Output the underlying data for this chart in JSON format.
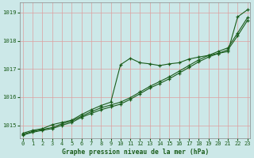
{
  "title": "Graphe pression niveau de la mer (hPa)",
  "background_color": "#cce8e8",
  "grid_color": "#dda0a0",
  "line_color": "#1a5c1a",
  "text_color": "#1a5c1a",
  "xlim": [
    -0.3,
    23.3
  ],
  "ylim": [
    1014.55,
    1019.35
  ],
  "yticks": [
    1015,
    1016,
    1017,
    1018,
    1019
  ],
  "xtick_labels": [
    "0",
    "1",
    "2",
    "3",
    "4",
    "5",
    "6",
    "7",
    "8",
    "9",
    "10",
    "11",
    "12",
    "13",
    "14",
    "15",
    "16",
    "17",
    "18",
    "19",
    "20",
    "21",
    "22",
    "23"
  ],
  "line1": [
    1014.72,
    1014.82,
    1014.88,
    1015.02,
    1015.1,
    1015.18,
    1015.38,
    1015.55,
    1015.7,
    1015.82,
    1017.15,
    1017.38,
    1017.22,
    1017.18,
    1017.12,
    1017.18,
    1017.22,
    1017.35,
    1017.42,
    1017.48,
    1017.55,
    1017.62,
    1018.85,
    1019.1
  ],
  "line2": [
    1014.68,
    1014.78,
    1014.85,
    1014.92,
    1015.05,
    1015.15,
    1015.32,
    1015.48,
    1015.62,
    1015.72,
    1015.82,
    1015.98,
    1016.18,
    1016.38,
    1016.55,
    1016.72,
    1016.92,
    1017.12,
    1017.32,
    1017.48,
    1017.62,
    1017.75,
    1018.28,
    1018.82
  ],
  "line3": [
    1014.65,
    1014.75,
    1014.82,
    1014.88,
    1015.0,
    1015.1,
    1015.28,
    1015.42,
    1015.55,
    1015.65,
    1015.75,
    1015.92,
    1016.12,
    1016.32,
    1016.48,
    1016.65,
    1016.85,
    1017.05,
    1017.25,
    1017.42,
    1017.55,
    1017.68,
    1018.18,
    1018.72
  ]
}
